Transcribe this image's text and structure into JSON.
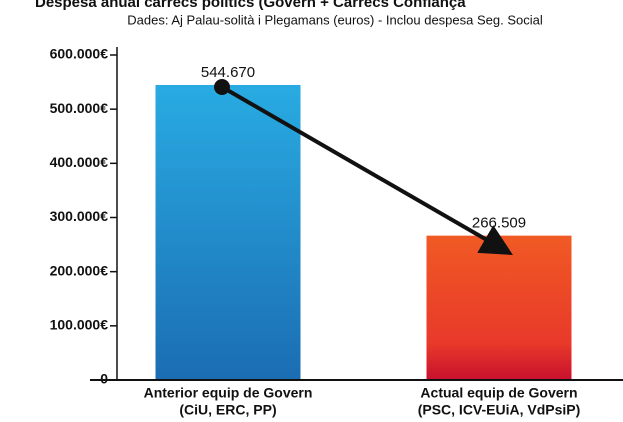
{
  "chart_data": {
    "type": "bar",
    "title": "Despesa anual càrrecs polítics (Govern + Càrrecs Confiança",
    "subtitle": "Dades: Aj Palau-solità i Plegamans (euros) - Inclou despesa Seg. Social",
    "categories": [
      [
        "Anterior equip de Govern",
        "(CiU, ERC, PP)"
      ],
      [
        "Actual equip de Govern",
        "(PSC, ICV-EUiA, VdPsiP)"
      ]
    ],
    "values": [
      544670,
      266509
    ],
    "value_labels": [
      "544.670",
      "266.509"
    ],
    "colors": [
      "#29abe2",
      "#f15a24"
    ],
    "ylim": [
      0,
      600000
    ],
    "yticks": [
      {
        "value": 0,
        "label": "0"
      },
      {
        "value": 100000,
        "label": "100.000€"
      },
      {
        "value": 200000,
        "label": "200.000€"
      },
      {
        "value": 300000,
        "label": "300.000€"
      },
      {
        "value": 400000,
        "label": "400.000€"
      },
      {
        "value": 500000,
        "label": "500.000€"
      },
      {
        "value": 600000,
        "label": "600.000€"
      }
    ]
  }
}
